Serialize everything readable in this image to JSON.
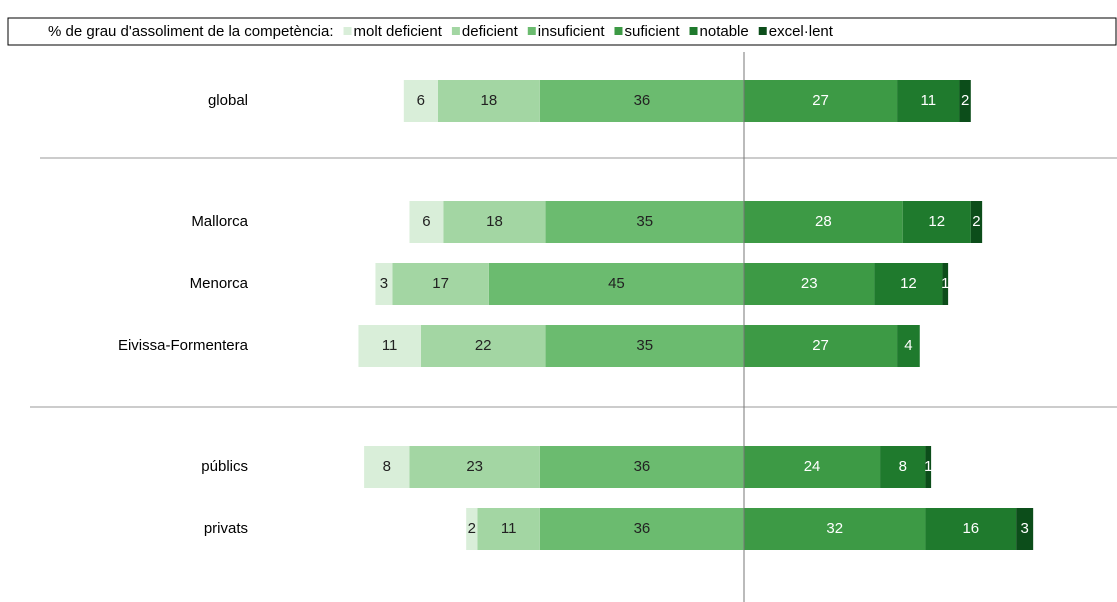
{
  "chart_data": {
    "type": "diverging_bar",
    "legend_title": "% de grau d'assoliment de la competència:",
    "categories": [
      "global",
      "Mallorca",
      "Menorca",
      "Eivissa-Formentera",
      "públics",
      "privats"
    ],
    "series": [
      {
        "name": "molt deficient",
        "color": "#d9eed9",
        "values": [
          6,
          6,
          3,
          11,
          8,
          2
        ]
      },
      {
        "name": "deficient",
        "color": "#a3d6a3",
        "values": [
          18,
          18,
          17,
          22,
          23,
          11
        ]
      },
      {
        "name": "insuficient",
        "color": "#6bbb6f",
        "values": [
          36,
          35,
          45,
          35,
          36,
          36
        ]
      },
      {
        "name": "suficient",
        "color": "#3d9a45",
        "values": [
          27,
          28,
          23,
          27,
          24,
          32
        ]
      },
      {
        "name": "notable",
        "color": "#1f7a2d",
        "values": [
          11,
          12,
          12,
          4,
          8,
          16
        ]
      },
      {
        "name": "excel·lent",
        "color": "#0c4d1a",
        "values": [
          2,
          2,
          1,
          null,
          1,
          3
        ]
      }
    ]
  }
}
